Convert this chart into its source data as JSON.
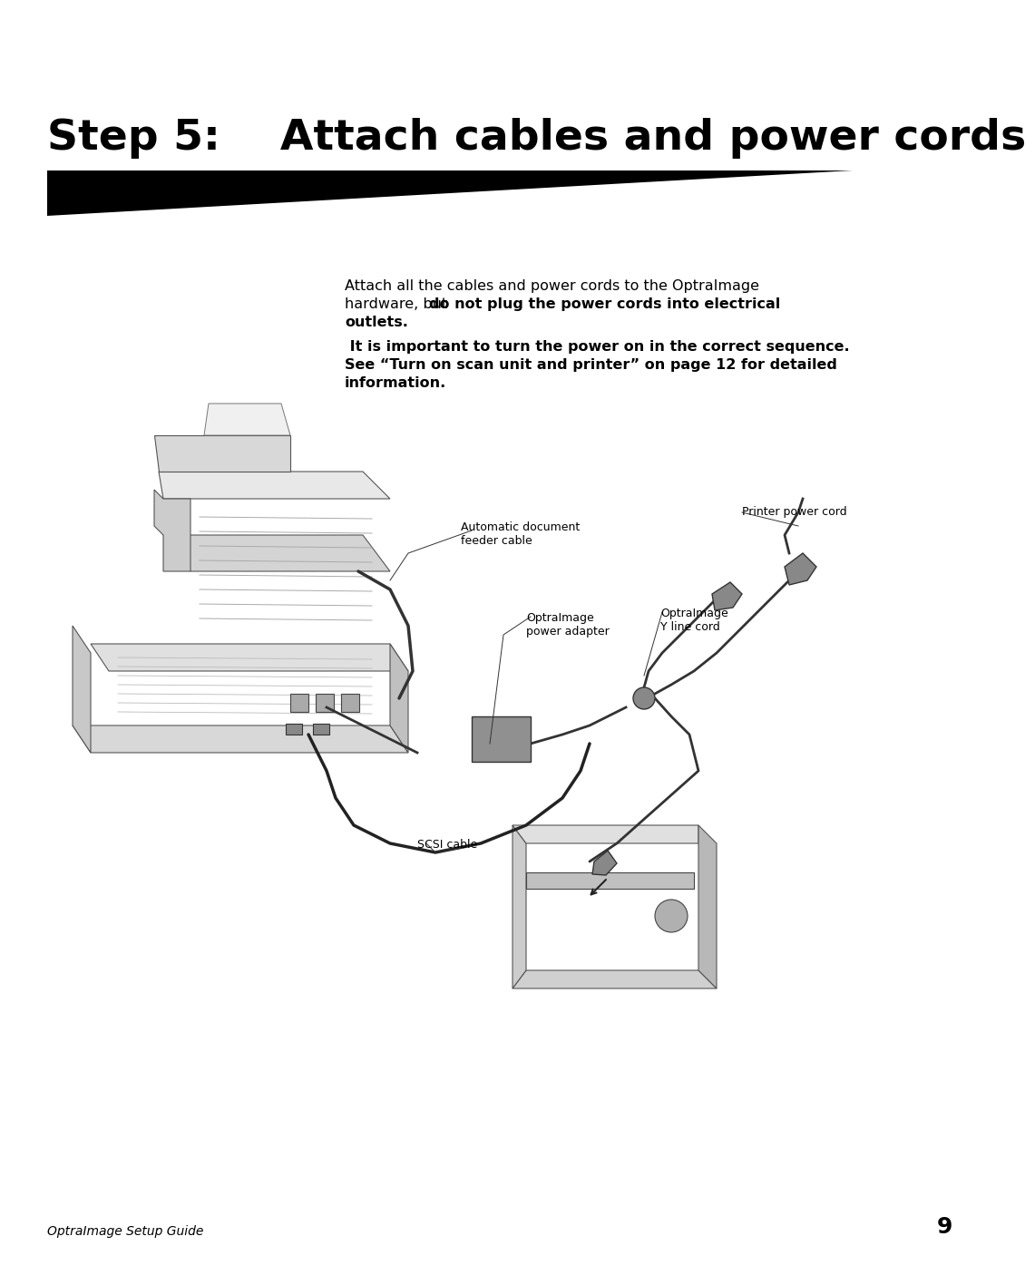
{
  "bg_color": "#ffffff",
  "title": "Step 5:    Attach cables and power cords",
  "title_fontsize": 34,
  "triangle_color": "#000000",
  "para1_line1": "Attach all the cables and power cords to the OptraImage",
  "para1_line2_normal": "hardware, but ",
  "para1_line2_bold": "do not plug the power cords into electrical",
  "para1_line3_bold": "outlets.",
  "para2_line1": " It is important to turn the power on in the correct sequence.",
  "para2_line2": "See “Turn on scan unit and printer” on page 12 for detailed",
  "para2_line3": "information.",
  "footer_italic": "OptraImage Setup Guide",
  "footer_page": "9",
  "label_auto_doc": "Automatic document\nfeeder cable",
  "label_printer_power": "Printer power cord",
  "label_optra_adapter": "OptraImage\npower adapter",
  "label_optra_yline": "OptraImage\nY line cord",
  "label_scsi": "SCSI cable"
}
